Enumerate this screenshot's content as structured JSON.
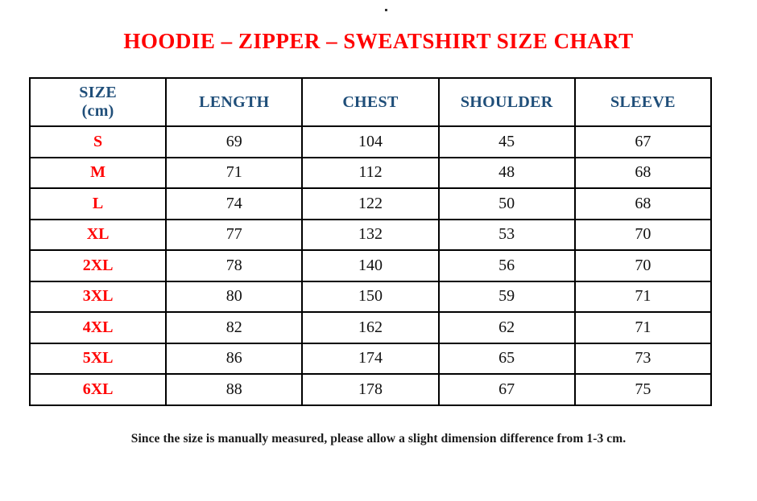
{
  "page": {
    "title": "HOODIE – ZIPPER – SWEATSHIRT SIZE CHART",
    "note": "Since the size is manually measured, please allow a slight dimension difference from 1-3 cm."
  },
  "colors": {
    "title_red": "#ff0000",
    "size_label_red": "#ff0000",
    "header_blue": "#1f4e79",
    "value_black": "#111111",
    "border_black": "#000000",
    "background": "#ffffff"
  },
  "table_header": {
    "size_line1": "SIZE",
    "size_line2": "(cm)"
  },
  "chart_data": {
    "type": "table",
    "title": "HOODIE – ZIPPER – SWEATSHIRT SIZE CHART",
    "columns": [
      "SIZE (cm)",
      "LENGTH",
      "CHEST",
      "SHOULDER",
      "SLEEVE"
    ],
    "rows": [
      [
        "S",
        "69",
        "104",
        "45",
        "67"
      ],
      [
        "M",
        "71",
        "112",
        "48",
        "68"
      ],
      [
        "L",
        "74",
        "122",
        "50",
        "68"
      ],
      [
        "XL",
        "77",
        "132",
        "53",
        "70"
      ],
      [
        "2XL",
        "78",
        "140",
        "56",
        "70"
      ],
      [
        "3XL",
        "80",
        "150",
        "59",
        "71"
      ],
      [
        "4XL",
        "82",
        "162",
        "62",
        "71"
      ],
      [
        "5XL",
        "86",
        "174",
        "65",
        "73"
      ],
      [
        "6XL",
        "88",
        "178",
        "67",
        "75"
      ]
    ],
    "note": "Since the size is manually measured, please allow a slight dimension difference from 1-3 cm.",
    "units": "cm"
  }
}
